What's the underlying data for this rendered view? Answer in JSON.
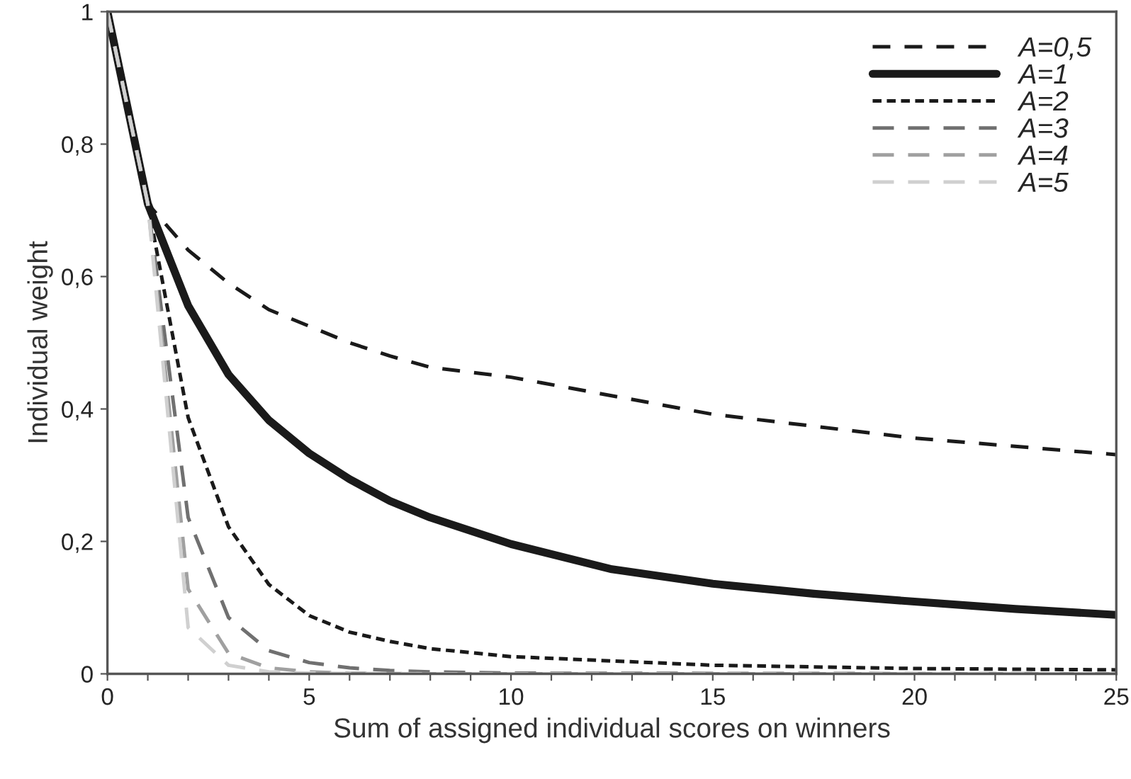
{
  "chart_data": {
    "type": "line",
    "xlabel": "Sum of assigned individual scores on winners",
    "ylabel": "Individual weight",
    "xlim": [
      0,
      25
    ],
    "ylim": [
      0,
      1
    ],
    "xticks": [
      0,
      {
        "value": 1,
        "label": null
      },
      {
        "value": 2,
        "label": null
      },
      {
        "value": 3,
        "label": null
      },
      {
        "value": 4,
        "label": null
      },
      5,
      {
        "value": 6,
        "label": null
      },
      {
        "value": 7,
        "label": null
      },
      {
        "value": 8,
        "label": null
      },
      {
        "value": 9,
        "label": null
      },
      10,
      {
        "value": 11,
        "label": null
      },
      {
        "value": 12,
        "label": null
      },
      {
        "value": 13,
        "label": null
      },
      {
        "value": 14,
        "label": null
      },
      15,
      {
        "value": 16,
        "label": null
      },
      {
        "value": 17,
        "label": null
      },
      {
        "value": 18,
        "label": null
      },
      {
        "value": 19,
        "label": null
      },
      20,
      {
        "value": 21,
        "label": null
      },
      {
        "value": 22,
        "label": null
      },
      {
        "value": 23,
        "label": null
      },
      {
        "value": 24,
        "label": null
      },
      25
    ],
    "yticks": [
      0,
      {
        "value": 0.2,
        "label": "0,2"
      },
      {
        "value": 0.4,
        "label": "0,4"
      },
      {
        "value": 0.6,
        "label": "0,6"
      },
      {
        "value": 0.8,
        "label": "0,8"
      },
      1
    ],
    "grid": false,
    "legend": "top right",
    "marker": "none",
    "series": [
      {
        "name": "A=0,5",
        "color": "#1a1a1a",
        "line_style": "dashed",
        "x": [
          0,
          1,
          2,
          3,
          4,
          5,
          6,
          7,
          8,
          10,
          15,
          20,
          25
        ],
        "values": [
          1,
          0.71,
          0.64,
          0.59,
          0.55,
          0.525,
          0.5,
          0.48,
          0.463,
          0.448,
          0.392,
          0.356,
          0.331
        ]
      },
      {
        "name": "A=1",
        "color": "#1a1a1a",
        "line_style": "solid",
        "x": [
          0,
          1,
          2,
          3,
          4,
          5,
          6,
          7,
          8,
          10,
          12.5,
          15,
          17.5,
          20,
          22.5,
          25
        ],
        "values": [
          1,
          0.71,
          0.556,
          0.452,
          0.383,
          0.333,
          0.294,
          0.261,
          0.236,
          0.196,
          0.158,
          0.136,
          0.121,
          0.109,
          0.098,
          0.089
        ]
      },
      {
        "name": "A=2",
        "color": "#1a1a1a",
        "line_style": "dotted",
        "x": [
          0,
          1,
          2,
          3,
          4,
          5,
          6,
          7,
          8,
          10,
          15,
          20,
          25
        ],
        "values": [
          1,
          0.71,
          0.387,
          0.222,
          0.135,
          0.088,
          0.063,
          0.049,
          0.038,
          0.026,
          0.013,
          0.008,
          0.006
        ]
      },
      {
        "name": "A=3",
        "color": "#707070",
        "line_style": "dashed",
        "x": [
          0,
          1,
          2,
          3,
          4,
          5,
          6,
          7,
          8,
          10,
          25
        ],
        "values": [
          1,
          0.71,
          0.236,
          0.085,
          0.035,
          0.017,
          0.009,
          0.005,
          0.003,
          0.001,
          0
        ]
      },
      {
        "name": "A=4",
        "color": "#a0a0a0",
        "line_style": "dashed",
        "x": [
          0,
          1,
          2,
          3,
          4,
          5,
          6,
          8,
          25
        ],
        "values": [
          1,
          0.71,
          0.128,
          0.031,
          0.009,
          0.003,
          0.001,
          0,
          0
        ]
      },
      {
        "name": "A=5",
        "color": "#d0d0d0",
        "line_style": "dashed",
        "x": [
          0,
          1,
          2,
          3,
          4,
          5,
          8,
          25
        ],
        "values": [
          1,
          0.71,
          0.07,
          0.013,
          0.003,
          0.001,
          0,
          0
        ]
      }
    ]
  }
}
